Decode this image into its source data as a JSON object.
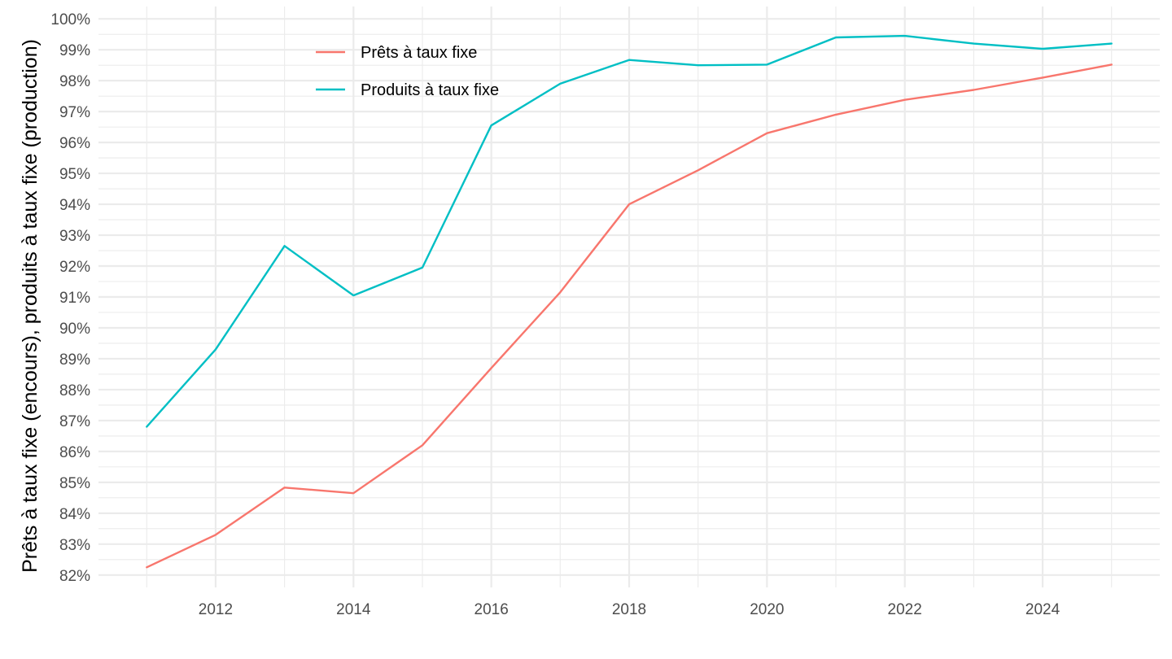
{
  "chart_data": {
    "type": "line",
    "title": "",
    "xlabel": "",
    "ylabel": "Prêts à taux fixe (encours), produits à taux fixe (production)",
    "x": [
      2011,
      2012,
      2013,
      2014,
      2015,
      2016,
      2017,
      2018,
      2019,
      2020,
      2021,
      2022,
      2023,
      2024,
      2025
    ],
    "xlim": [
      2010.3,
      2025.7
    ],
    "ylim": [
      81.6,
      100.4
    ],
    "x_ticks": [
      2012,
      2014,
      2016,
      2018,
      2020,
      2022,
      2024
    ],
    "x_tick_labels": [
      "2012",
      "2014",
      "2016",
      "2018",
      "2020",
      "2022",
      "2024"
    ],
    "y_ticks": [
      82,
      83,
      84,
      85,
      86,
      87,
      88,
      89,
      90,
      91,
      92,
      93,
      94,
      95,
      96,
      97,
      98,
      99,
      100
    ],
    "y_tick_labels": [
      "82%",
      "83%",
      "84%",
      "85%",
      "86%",
      "87%",
      "88%",
      "89%",
      "90%",
      "91%",
      "92%",
      "93%",
      "94%",
      "95%",
      "96%",
      "97%",
      "98%",
      "99%",
      "100%"
    ],
    "grid": true,
    "legend": "top-left",
    "series": [
      {
        "name": "Prêts à taux fixe",
        "color": "#F8766D",
        "values": [
          82.25,
          83.3,
          84.83,
          84.65,
          86.2,
          88.7,
          91.15,
          94.0,
          95.1,
          96.3,
          96.9,
          97.38,
          97.7,
          98.1,
          98.52
        ]
      },
      {
        "name": "Produits à taux fixe",
        "color": "#00BFC4",
        "values": [
          86.8,
          89.3,
          92.65,
          91.05,
          91.95,
          96.55,
          97.9,
          98.67,
          98.5,
          98.52,
          99.4,
          99.45,
          99.2,
          99.03,
          99.2
        ]
      }
    ]
  }
}
